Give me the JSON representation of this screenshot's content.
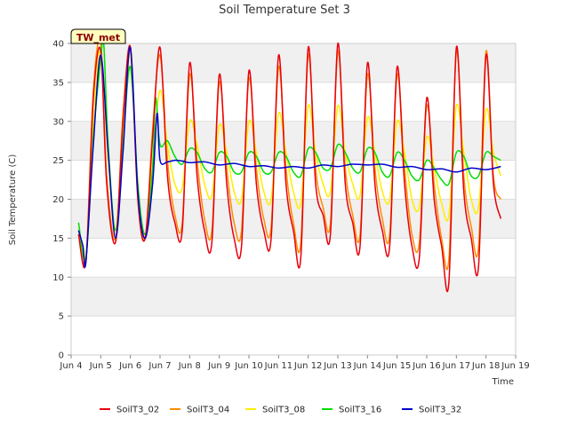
{
  "chart_data": {
    "type": "line",
    "title": "Soil Temperature Set 3",
    "xlabel": "Time",
    "ylabel": "Soil Temperature (C)",
    "xlim": [
      4,
      19
    ],
    "ylim": [
      0,
      40
    ],
    "grid": true,
    "legend_position": "bottom",
    "badge": "TW_met",
    "x_ticks": [
      {
        "value": 4,
        "label": "Jun 4"
      },
      {
        "value": 5,
        "label": "Jun 5"
      },
      {
        "value": 6,
        "label": "Jun 6"
      },
      {
        "value": 7,
        "label": "Jun 7"
      },
      {
        "value": 8,
        "label": "Jun 8"
      },
      {
        "value": 9,
        "label": "Jun 9"
      },
      {
        "value": 10,
        "label": "Jun 10"
      },
      {
        "value": 11,
        "label": "Jun 11"
      },
      {
        "value": 12,
        "label": "Jun 12"
      },
      {
        "value": 13,
        "label": "Jun 13"
      },
      {
        "value": 14,
        "label": "Jun 14"
      },
      {
        "value": 15,
        "label": "Jun 15"
      },
      {
        "value": 16,
        "label": "Jun 16"
      },
      {
        "value": 17,
        "label": "Jun 17"
      },
      {
        "value": 18,
        "label": "Jun 18"
      },
      {
        "value": 19,
        "label": "Jun 19"
      }
    ],
    "y_ticks": [
      0,
      5,
      10,
      15,
      20,
      25,
      30,
      35,
      40
    ],
    "series": [
      {
        "name": "SoilT3_02",
        "color": "#e8000b",
        "points": [
          [
            4.25,
            15.5
          ],
          [
            4.5,
            12
          ],
          [
            4.75,
            33
          ],
          [
            5,
            39
          ],
          [
            5.2,
            22
          ],
          [
            5.5,
            14.5
          ],
          [
            5.75,
            30
          ],
          [
            6,
            39.5
          ],
          [
            6.25,
            20
          ],
          [
            6.5,
            15
          ],
          [
            6.75,
            28
          ],
          [
            7,
            39.5
          ],
          [
            7.25,
            23
          ],
          [
            7.5,
            17
          ],
          [
            7.75,
            16
          ],
          [
            8,
            37.5
          ],
          [
            8.25,
            23
          ],
          [
            8.5,
            16
          ],
          [
            8.75,
            14.5
          ],
          [
            9,
            36
          ],
          [
            9.25,
            22
          ],
          [
            9.5,
            15
          ],
          [
            9.75,
            14
          ],
          [
            10,
            36.5
          ],
          [
            10.25,
            22
          ],
          [
            10.5,
            16
          ],
          [
            10.75,
            15
          ],
          [
            11,
            38.5
          ],
          [
            11.25,
            22
          ],
          [
            11.5,
            16
          ],
          [
            11.75,
            12.5
          ],
          [
            12,
            39.5
          ],
          [
            12.25,
            22
          ],
          [
            12.5,
            18
          ],
          [
            12.75,
            15.5
          ],
          [
            13,
            40
          ],
          [
            13.25,
            22
          ],
          [
            13.5,
            17
          ],
          [
            13.75,
            14
          ],
          [
            14,
            37.5
          ],
          [
            14.25,
            22
          ],
          [
            14.5,
            16
          ],
          [
            14.75,
            14
          ],
          [
            15,
            37
          ],
          [
            15.25,
            22
          ],
          [
            15.5,
            14
          ],
          [
            15.75,
            12.5
          ],
          [
            16,
            33
          ],
          [
            16.25,
            20
          ],
          [
            16.5,
            14
          ],
          [
            16.75,
            9.5
          ],
          [
            17,
            39.5
          ],
          [
            17.25,
            21
          ],
          [
            17.5,
            15
          ],
          [
            17.75,
            11.5
          ],
          [
            18,
            38.5
          ],
          [
            18.25,
            22
          ],
          [
            18.5,
            17.5
          ]
        ]
      },
      {
        "name": "SoilT3_04",
        "color": "#ff8c00",
        "points": [
          [
            4.25,
            15.5
          ],
          [
            4.5,
            12.5
          ],
          [
            4.75,
            34
          ],
          [
            5,
            40
          ],
          [
            5.2,
            23
          ],
          [
            5.5,
            15
          ],
          [
            5.75,
            31
          ],
          [
            6,
            39
          ],
          [
            6.25,
            21
          ],
          [
            6.5,
            15
          ],
          [
            6.75,
            29
          ],
          [
            7,
            38.5
          ],
          [
            7.25,
            25
          ],
          [
            7.5,
            18
          ],
          [
            7.75,
            17
          ],
          [
            8,
            36
          ],
          [
            8.25,
            25
          ],
          [
            8.5,
            17.5
          ],
          [
            8.75,
            16
          ],
          [
            9,
            35
          ],
          [
            9.25,
            24
          ],
          [
            9.5,
            17
          ],
          [
            9.75,
            16
          ],
          [
            10,
            35.5
          ],
          [
            10.25,
            24
          ],
          [
            10.5,
            17.5
          ],
          [
            10.75,
            16.5
          ],
          [
            11,
            37
          ],
          [
            11.25,
            24
          ],
          [
            11.5,
            17
          ],
          [
            11.75,
            14.5
          ],
          [
            12,
            38.5
          ],
          [
            12.25,
            24
          ],
          [
            12.5,
            19
          ],
          [
            12.75,
            17
          ],
          [
            13,
            39
          ],
          [
            13.25,
            24
          ],
          [
            13.5,
            18
          ],
          [
            13.75,
            15.5
          ],
          [
            14,
            36
          ],
          [
            14.25,
            24
          ],
          [
            14.5,
            17.5
          ],
          [
            14.75,
            15.5
          ],
          [
            15,
            36
          ],
          [
            15.25,
            24
          ],
          [
            15.5,
            15.5
          ],
          [
            15.75,
            14.5
          ],
          [
            16,
            32
          ],
          [
            16.25,
            22
          ],
          [
            16.5,
            15
          ],
          [
            16.75,
            12.5
          ],
          [
            17,
            39
          ],
          [
            17.25,
            23
          ],
          [
            17.5,
            16.5
          ],
          [
            17.75,
            14
          ],
          [
            18,
            39
          ],
          [
            18.25,
            23
          ],
          [
            18.5,
            20
          ]
        ]
      },
      {
        "name": "SoilT3_08",
        "color": "#ffee00",
        "points": [
          [
            4.25,
            16
          ],
          [
            4.5,
            13
          ],
          [
            4.75,
            30
          ],
          [
            5,
            39
          ],
          [
            5.25,
            25
          ],
          [
            5.5,
            16
          ],
          [
            5.75,
            28
          ],
          [
            6,
            38.5
          ],
          [
            6.25,
            22
          ],
          [
            6.5,
            15
          ],
          [
            6.75,
            25
          ],
          [
            7,
            34
          ],
          [
            7.25,
            27
          ],
          [
            7.5,
            22
          ],
          [
            7.75,
            21.5
          ],
          [
            8,
            30
          ],
          [
            8.25,
            27
          ],
          [
            8.5,
            22
          ],
          [
            8.75,
            20.5
          ],
          [
            9,
            29.5
          ],
          [
            9.25,
            26
          ],
          [
            9.5,
            21
          ],
          [
            9.75,
            20
          ],
          [
            10,
            30
          ],
          [
            10.25,
            26
          ],
          [
            10.5,
            21
          ],
          [
            10.75,
            20
          ],
          [
            11,
            31
          ],
          [
            11.25,
            26
          ],
          [
            11.5,
            21
          ],
          [
            11.75,
            19.5
          ],
          [
            12,
            32
          ],
          [
            12.25,
            26
          ],
          [
            12.5,
            22
          ],
          [
            12.75,
            21
          ],
          [
            13,
            32
          ],
          [
            13.25,
            26
          ],
          [
            13.5,
            22
          ],
          [
            13.75,
            20.5
          ],
          [
            14,
            30.5
          ],
          [
            14.25,
            26
          ],
          [
            14.5,
            21
          ],
          [
            14.75,
            20
          ],
          [
            15,
            30
          ],
          [
            15.25,
            26
          ],
          [
            15.5,
            20
          ],
          [
            15.75,
            19
          ],
          [
            16,
            28
          ],
          [
            16.25,
            24
          ],
          [
            16.5,
            19.5
          ],
          [
            16.75,
            18
          ],
          [
            17,
            32
          ],
          [
            17.25,
            26
          ],
          [
            17.5,
            20
          ],
          [
            17.75,
            19
          ],
          [
            18,
            31.5
          ],
          [
            18.25,
            26
          ],
          [
            18.5,
            23
          ]
        ]
      },
      {
        "name": "SoilT3_16",
        "color": "#00dd00",
        "points": [
          [
            4.25,
            17
          ],
          [
            4.5,
            12.5
          ],
          [
            4.75,
            28
          ],
          [
            5,
            38
          ],
          [
            5.1,
            40
          ],
          [
            5.25,
            27
          ],
          [
            5.5,
            16
          ],
          [
            5.75,
            27
          ],
          [
            6,
            37
          ],
          [
            6.25,
            22
          ],
          [
            6.5,
            15.5
          ],
          [
            6.75,
            24
          ],
          [
            6.85,
            33
          ],
          [
            7,
            27
          ],
          [
            7.25,
            27.5
          ],
          [
            7.5,
            25.5
          ],
          [
            7.75,
            24.5
          ],
          [
            8,
            26.5
          ],
          [
            8.25,
            26
          ],
          [
            8.5,
            24
          ],
          [
            8.75,
            23.5
          ],
          [
            9,
            26
          ],
          [
            9.25,
            25.5
          ],
          [
            9.5,
            23.5
          ],
          [
            9.75,
            23.5
          ],
          [
            10,
            26
          ],
          [
            10.25,
            25.5
          ],
          [
            10.5,
            23.5
          ],
          [
            10.75,
            23.5
          ],
          [
            11,
            26
          ],
          [
            11.25,
            25.5
          ],
          [
            11.5,
            23.5
          ],
          [
            11.75,
            23
          ],
          [
            12,
            26.5
          ],
          [
            12.25,
            26
          ],
          [
            12.5,
            24
          ],
          [
            12.75,
            24
          ],
          [
            13,
            27
          ],
          [
            13.25,
            26
          ],
          [
            13.5,
            24
          ],
          [
            13.75,
            23.5
          ],
          [
            14,
            26.5
          ],
          [
            14.25,
            26
          ],
          [
            14.5,
            23.5
          ],
          [
            14.75,
            23
          ],
          [
            15,
            26
          ],
          [
            15.25,
            25
          ],
          [
            15.5,
            23
          ],
          [
            15.75,
            22.5
          ],
          [
            16,
            25
          ],
          [
            16.25,
            24
          ],
          [
            16.5,
            22.5
          ],
          [
            16.75,
            22
          ],
          [
            17,
            26
          ],
          [
            17.25,
            25.5
          ],
          [
            17.5,
            23
          ],
          [
            17.75,
            23
          ],
          [
            18,
            26
          ],
          [
            18.25,
            25.5
          ],
          [
            18.5,
            25
          ]
        ]
      },
      {
        "name": "SoilT3_32",
        "color": "#0000cc",
        "points": [
          [
            4.25,
            16
          ],
          [
            4.4,
            14
          ],
          [
            4.5,
            12
          ],
          [
            4.75,
            27
          ],
          [
            5,
            38.5
          ],
          [
            5.25,
            26
          ],
          [
            5.5,
            15
          ],
          [
            5.75,
            26
          ],
          [
            6,
            39.5
          ],
          [
            6.25,
            21
          ],
          [
            6.5,
            15
          ],
          [
            6.75,
            22
          ],
          [
            6.9,
            31
          ],
          [
            7,
            25
          ],
          [
            7.25,
            24.8
          ],
          [
            7.5,
            25
          ],
          [
            7.75,
            24.9
          ],
          [
            8,
            24.7
          ],
          [
            8.5,
            24.8
          ],
          [
            9,
            24.4
          ],
          [
            9.5,
            24.6
          ],
          [
            10,
            24.2
          ],
          [
            10.5,
            24.3
          ],
          [
            11,
            24
          ],
          [
            11.5,
            24.2
          ],
          [
            12,
            24
          ],
          [
            12.5,
            24.4
          ],
          [
            13,
            24.2
          ],
          [
            13.5,
            24.5
          ],
          [
            14,
            24.4
          ],
          [
            14.5,
            24.5
          ],
          [
            15,
            24.1
          ],
          [
            15.5,
            24.2
          ],
          [
            16,
            23.8
          ],
          [
            16.5,
            23.9
          ],
          [
            17,
            23.5
          ],
          [
            17.5,
            24
          ],
          [
            18,
            23.8
          ],
          [
            18.5,
            24.2
          ]
        ]
      }
    ]
  }
}
